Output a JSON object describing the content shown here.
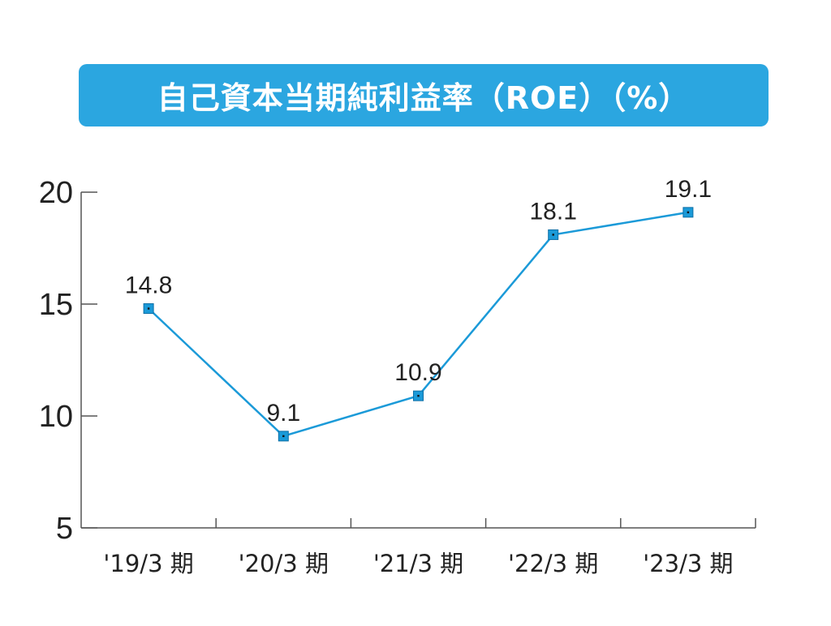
{
  "chart_data": {
    "type": "line",
    "title": "自己資本当期純利益率（ROE）（%）",
    "categories": [
      "'19/3 期",
      "'20/3 期",
      "'21/3 期",
      "'22/3 期",
      "'23/3 期"
    ],
    "series": [
      {
        "values": [
          14.8,
          9.1,
          10.9,
          18.1,
          19.1
        ],
        "data_labels": [
          "14.8",
          "9.1",
          "10.9",
          "18.1",
          "19.1"
        ]
      }
    ],
    "yticks": [
      5,
      10,
      15,
      20
    ],
    "ytick_labels": [
      "5",
      "10",
      "15",
      "20"
    ],
    "ylim": [
      5,
      20
    ],
    "grid": false,
    "line_color": "#1b9ad8",
    "marker": "square",
    "title_background": "#2ba6e0"
  }
}
